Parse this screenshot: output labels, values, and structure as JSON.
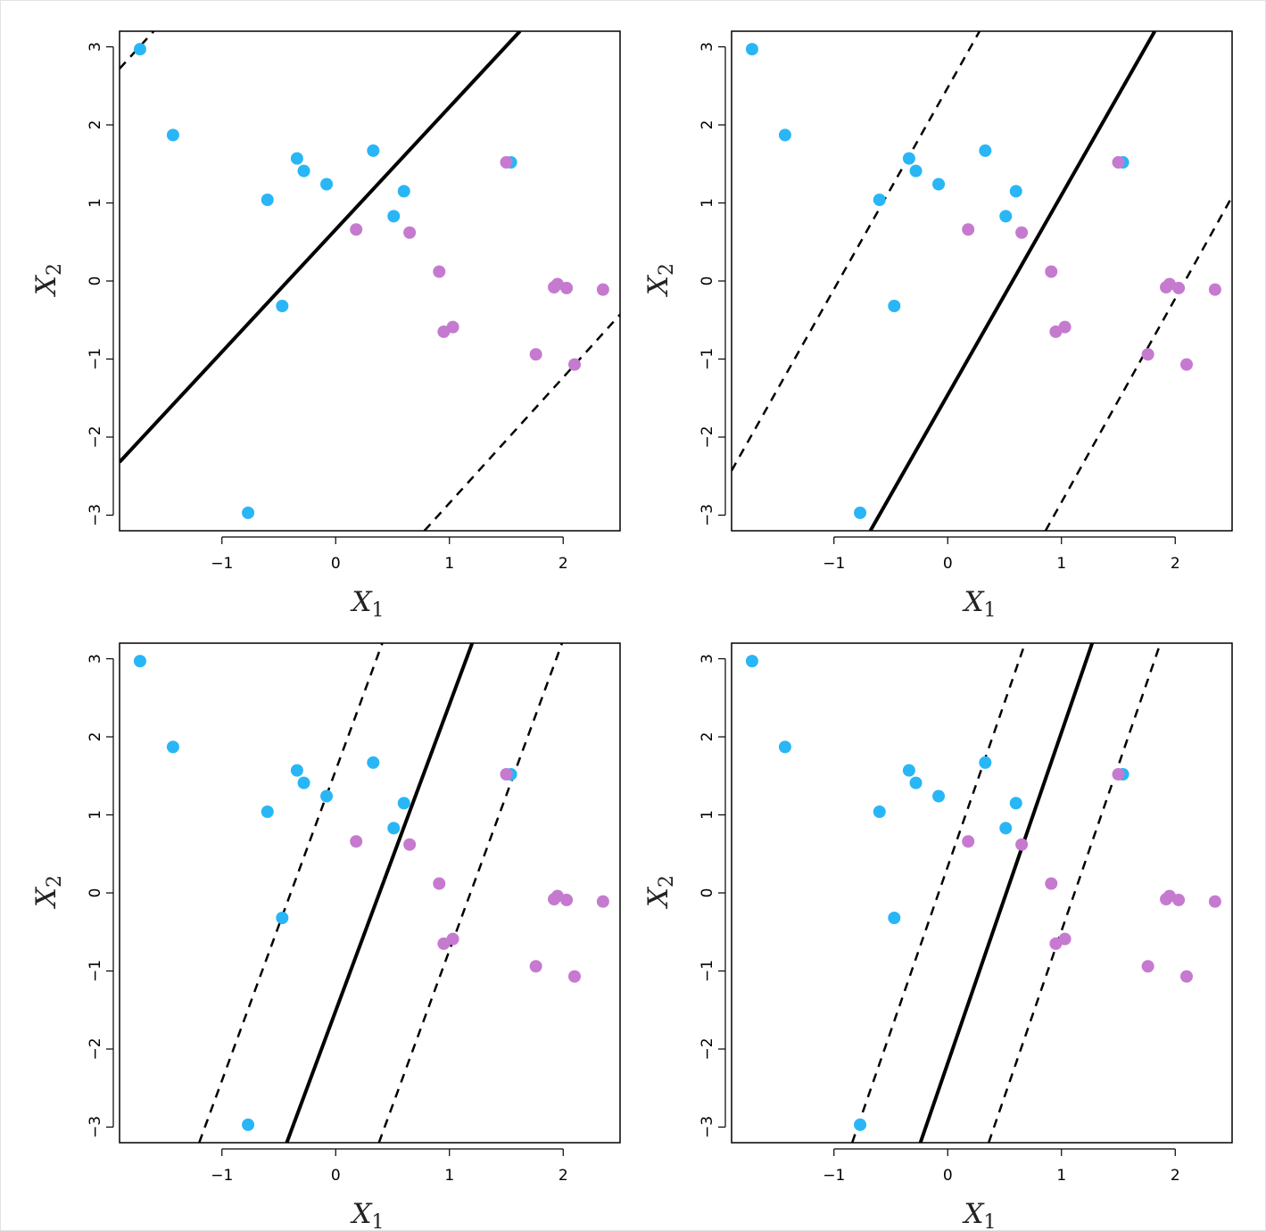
{
  "figure": {
    "panel_count": 4,
    "colors": {
      "class_a": "#29b6f6",
      "class_b": "#c57ad0",
      "line": "#000000"
    }
  },
  "chart_data": [
    {
      "type": "scatter",
      "panel": "top-left",
      "xlabel": "X",
      "xlabel_sub": "1",
      "ylabel": "X",
      "ylabel_sub": "2",
      "xlim": [
        -1.9,
        2.5
      ],
      "ylim": [
        -3.2,
        3.2
      ],
      "xticks": [
        -1,
        0,
        1,
        2
      ],
      "yticks": [
        -3,
        -2,
        -1,
        0,
        1,
        2,
        3
      ],
      "series": [
        {
          "class": "a",
          "points": [
            [
              -1.72,
              2.97
            ],
            [
              -1.43,
              1.87
            ],
            [
              -0.6,
              1.04
            ],
            [
              -0.34,
              1.57
            ],
            [
              -0.28,
              1.41
            ],
            [
              -0.08,
              1.24
            ],
            [
              0.33,
              1.67
            ],
            [
              0.6,
              1.15
            ],
            [
              0.51,
              0.83
            ],
            [
              -0.47,
              -0.32
            ],
            [
              -0.77,
              -2.97
            ],
            [
              1.54,
              1.52
            ]
          ]
        },
        {
          "class": "b",
          "points": [
            [
              0.18,
              0.66
            ],
            [
              0.65,
              0.62
            ],
            [
              0.91,
              0.12
            ],
            [
              0.95,
              -0.65
            ],
            [
              1.03,
              -0.59
            ],
            [
              1.5,
              1.52
            ],
            [
              1.92,
              -0.08
            ],
            [
              1.95,
              -0.04
            ],
            [
              2.03,
              -0.09
            ],
            [
              2.35,
              -0.11
            ],
            [
              1.76,
              -0.94
            ],
            [
              2.1,
              -1.07
            ]
          ]
        }
      ],
      "lines": [
        {
          "style": "solid",
          "points": [
            [
              -1.9,
              -2.32
            ],
            [
              1.62,
              3.2
            ]
          ]
        },
        {
          "style": "dashed",
          "points": [
            [
              -1.9,
              2.72
            ],
            [
              -1.6,
              3.2
            ]
          ]
        },
        {
          "style": "dashed",
          "points": [
            [
              0.78,
              -3.2
            ],
            [
              2.5,
              -0.43
            ]
          ]
        }
      ]
    },
    {
      "type": "scatter",
      "panel": "top-right",
      "xlabel": "X",
      "xlabel_sub": "1",
      "ylabel": "X",
      "ylabel_sub": "2",
      "xlim": [
        -1.9,
        2.5
      ],
      "ylim": [
        -3.2,
        3.2
      ],
      "xticks": [
        -1,
        0,
        1,
        2
      ],
      "yticks": [
        -3,
        -2,
        -1,
        0,
        1,
        2,
        3
      ],
      "series": [
        {
          "class": "a",
          "points": [
            [
              -1.72,
              2.97
            ],
            [
              -1.43,
              1.87
            ],
            [
              -0.6,
              1.04
            ],
            [
              -0.34,
              1.57
            ],
            [
              -0.28,
              1.41
            ],
            [
              -0.08,
              1.24
            ],
            [
              0.33,
              1.67
            ],
            [
              0.6,
              1.15
            ],
            [
              0.51,
              0.83
            ],
            [
              -0.47,
              -0.32
            ],
            [
              -0.77,
              -2.97
            ],
            [
              1.54,
              1.52
            ]
          ]
        },
        {
          "class": "b",
          "points": [
            [
              0.18,
              0.66
            ],
            [
              0.65,
              0.62
            ],
            [
              0.91,
              0.12
            ],
            [
              0.95,
              -0.65
            ],
            [
              1.03,
              -0.59
            ],
            [
              1.5,
              1.52
            ],
            [
              1.92,
              -0.08
            ],
            [
              1.95,
              -0.04
            ],
            [
              2.03,
              -0.09
            ],
            [
              2.35,
              -0.11
            ],
            [
              1.76,
              -0.94
            ],
            [
              2.1,
              -1.07
            ]
          ]
        }
      ],
      "lines": [
        {
          "style": "solid",
          "points": [
            [
              -0.68,
              -3.2
            ],
            [
              1.82,
              3.2
            ]
          ]
        },
        {
          "style": "dashed",
          "points": [
            [
              -1.9,
              -2.43
            ],
            [
              0.28,
              3.2
            ]
          ]
        },
        {
          "style": "dashed",
          "points": [
            [
              0.86,
              -3.2
            ],
            [
              2.5,
              1.08
            ]
          ]
        }
      ]
    },
    {
      "type": "scatter",
      "panel": "bottom-left",
      "xlabel": "X",
      "xlabel_sub": "1",
      "ylabel": "X",
      "ylabel_sub": "2",
      "xlim": [
        -1.9,
        2.5
      ],
      "ylim": [
        -3.2,
        3.2
      ],
      "xticks": [
        -1,
        0,
        1,
        2
      ],
      "yticks": [
        -3,
        -2,
        -1,
        0,
        1,
        2,
        3
      ],
      "series": [
        {
          "class": "a",
          "points": [
            [
              -1.72,
              2.97
            ],
            [
              -1.43,
              1.87
            ],
            [
              -0.6,
              1.04
            ],
            [
              -0.34,
              1.57
            ],
            [
              -0.28,
              1.41
            ],
            [
              -0.08,
              1.24
            ],
            [
              0.33,
              1.67
            ],
            [
              0.6,
              1.15
            ],
            [
              0.51,
              0.83
            ],
            [
              -0.47,
              -0.32
            ],
            [
              -0.77,
              -2.97
            ],
            [
              1.54,
              1.52
            ]
          ]
        },
        {
          "class": "b",
          "points": [
            [
              0.18,
              0.66
            ],
            [
              0.65,
              0.62
            ],
            [
              0.91,
              0.12
            ],
            [
              0.95,
              -0.65
            ],
            [
              1.03,
              -0.59
            ],
            [
              1.5,
              1.52
            ],
            [
              1.92,
              -0.08
            ],
            [
              1.95,
              -0.04
            ],
            [
              2.03,
              -0.09
            ],
            [
              2.35,
              -0.11
            ],
            [
              1.76,
              -0.94
            ],
            [
              2.1,
              -1.07
            ]
          ]
        }
      ],
      "lines": [
        {
          "style": "solid",
          "points": [
            [
              -0.43,
              -3.2
            ],
            [
              1.2,
              3.2
            ]
          ]
        },
        {
          "style": "dashed",
          "points": [
            [
              -1.2,
              -3.2
            ],
            [
              0.41,
              3.2
            ]
          ]
        },
        {
          "style": "dashed",
          "points": [
            [
              0.38,
              -3.2
            ],
            [
              1.99,
              3.2
            ]
          ]
        }
      ]
    },
    {
      "type": "scatter",
      "panel": "bottom-right",
      "xlabel": "X",
      "xlabel_sub": "1",
      "ylabel": "X",
      "ylabel_sub": "2",
      "xlim": [
        -1.9,
        2.5
      ],
      "ylim": [
        -3.2,
        3.2
      ],
      "xticks": [
        -1,
        0,
        1,
        2
      ],
      "yticks": [
        -3,
        -2,
        -1,
        0,
        1,
        2,
        3
      ],
      "series": [
        {
          "class": "a",
          "points": [
            [
              -1.72,
              2.97
            ],
            [
              -1.43,
              1.87
            ],
            [
              -0.6,
              1.04
            ],
            [
              -0.34,
              1.57
            ],
            [
              -0.28,
              1.41
            ],
            [
              -0.08,
              1.24
            ],
            [
              0.33,
              1.67
            ],
            [
              0.6,
              1.15
            ],
            [
              0.51,
              0.83
            ],
            [
              -0.47,
              -0.32
            ],
            [
              -0.77,
              -2.97
            ],
            [
              1.54,
              1.52
            ]
          ]
        },
        {
          "class": "b",
          "points": [
            [
              0.18,
              0.66
            ],
            [
              0.65,
              0.62
            ],
            [
              0.91,
              0.12
            ],
            [
              0.95,
              -0.65
            ],
            [
              1.03,
              -0.59
            ],
            [
              1.5,
              1.52
            ],
            [
              1.92,
              -0.08
            ],
            [
              1.95,
              -0.04
            ],
            [
              2.03,
              -0.09
            ],
            [
              2.35,
              -0.11
            ],
            [
              1.76,
              -0.94
            ],
            [
              2.1,
              -1.07
            ]
          ]
        }
      ],
      "lines": [
        {
          "style": "solid",
          "points": [
            [
              -0.24,
              -3.2
            ],
            [
              1.27,
              3.2
            ]
          ]
        },
        {
          "style": "dashed",
          "points": [
            [
              -0.84,
              -3.2
            ],
            [
              0.68,
              3.2
            ]
          ]
        },
        {
          "style": "dashed",
          "points": [
            [
              0.36,
              -3.2
            ],
            [
              1.87,
              3.2
            ]
          ]
        }
      ]
    }
  ]
}
